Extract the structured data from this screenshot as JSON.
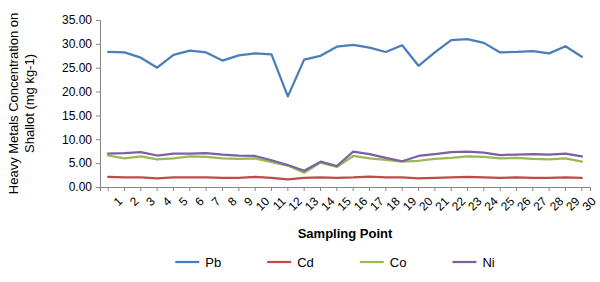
{
  "chart_data": {
    "type": "line",
    "x_label": "Sampling Point",
    "y_label": "Heavy Metals Concentration on Shallot (mg kg-1)",
    "categories": [
      "1",
      "2",
      "3",
      "4",
      "5",
      "6",
      "7",
      "8",
      "9",
      "10",
      "11",
      "12",
      "13",
      "14",
      "15",
      "16",
      "17",
      "18",
      "19",
      "20",
      "21",
      "22",
      "23",
      "24",
      "25",
      "26",
      "27",
      "28",
      "29",
      "30"
    ],
    "series": [
      {
        "name": "Pb",
        "color": "#4a7ebb",
        "values": [
          28.3,
          28.2,
          27.1,
          25.0,
          27.7,
          28.6,
          28.2,
          26.5,
          27.6,
          28.0,
          27.8,
          19.0,
          26.7,
          27.5,
          29.4,
          29.8,
          29.2,
          28.3,
          29.7,
          25.4,
          28.2,
          30.8,
          31.0,
          30.2,
          28.2,
          28.3,
          28.5,
          28.0,
          29.5,
          27.3
        ]
      },
      {
        "name": "Cd",
        "color": "#be4b48",
        "values": [
          2.1,
          2.0,
          2.0,
          1.8,
          2.0,
          2.0,
          2.0,
          1.9,
          1.9,
          2.1,
          1.9,
          1.6,
          1.9,
          2.0,
          1.9,
          2.0,
          2.2,
          2.0,
          2.0,
          1.8,
          1.9,
          2.0,
          2.1,
          2.0,
          1.9,
          2.0,
          1.9,
          1.9,
          2.0,
          1.9
        ]
      },
      {
        "name": "Co",
        "color": "#98b954",
        "values": [
          6.6,
          6.0,
          6.4,
          5.8,
          6.0,
          6.4,
          6.3,
          6.0,
          5.9,
          6.0,
          5.2,
          4.5,
          3.0,
          5.1,
          4.2,
          6.5,
          6.0,
          5.7,
          5.3,
          5.5,
          5.9,
          6.1,
          6.4,
          6.3,
          6.0,
          6.1,
          5.9,
          5.8,
          6.0,
          5.3
        ]
      },
      {
        "name": "Ni",
        "color": "#7d60a0",
        "values": [
          7.0,
          7.1,
          7.3,
          6.6,
          7.0,
          7.0,
          7.1,
          6.8,
          6.6,
          6.5,
          5.6,
          4.6,
          3.4,
          5.3,
          4.4,
          7.4,
          6.9,
          6.1,
          5.4,
          6.5,
          6.9,
          7.3,
          7.4,
          7.2,
          6.7,
          6.8,
          6.9,
          6.8,
          7.0,
          6.4
        ]
      }
    ],
    "ylim": [
      0,
      35
    ],
    "yticks": [
      {
        "value": 0,
        "label": "0.00"
      },
      {
        "value": 5,
        "label": "5.00"
      },
      {
        "value": 10,
        "label": "10.00"
      },
      {
        "value": 15,
        "label": "15.00"
      },
      {
        "value": 20,
        "label": "20.00"
      },
      {
        "value": 25,
        "label": "25.00"
      },
      {
        "value": 30,
        "label": "30.00"
      },
      {
        "value": 35,
        "label": "35.00"
      }
    ],
    "grid": false,
    "legend": "bottom"
  }
}
